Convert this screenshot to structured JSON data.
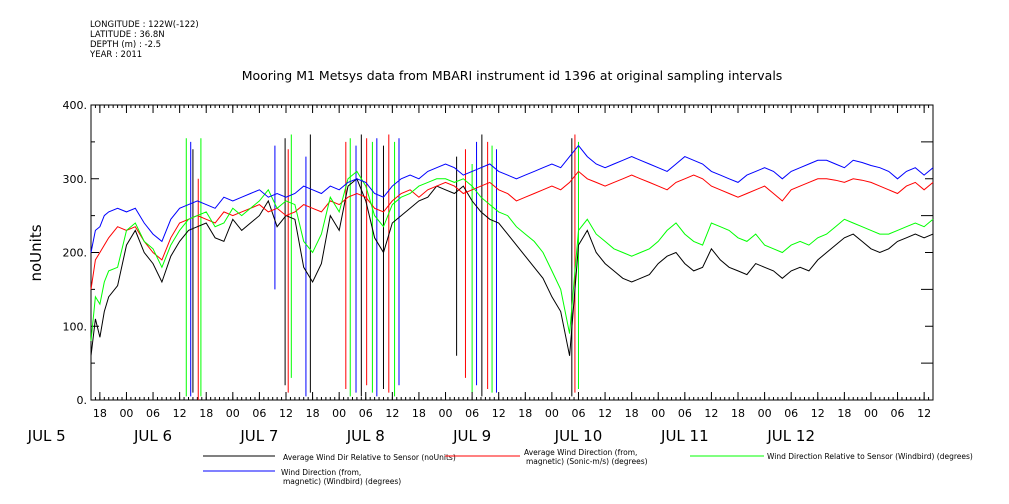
{
  "meta": {
    "longitude": "LONGITUDE : 122W(-122)",
    "latitude": "LATITUDE : 36.8N",
    "depth": "DEPTH (m) : -2.5",
    "year": "YEAR : 2011"
  },
  "chart_data": {
    "type": "line",
    "title": "Mooring M1 Metsys data from MBARI instrument id 1396 at original sampling intervals",
    "ylabel": "noUnits",
    "xlabel": "",
    "ylim": [
      0,
      400
    ],
    "xlim": [
      16,
      206
    ],
    "yticks": [
      0,
      100,
      200,
      300,
      400
    ],
    "ytick_labels": [
      "0.",
      "100.",
      "200.",
      "300.",
      "400."
    ],
    "x_unit": "hours since JUL 5 00:00",
    "x_hour_ticks": [
      "18",
      "00",
      "06",
      "12",
      "18",
      "00",
      "06",
      "12",
      "18",
      "00",
      "06",
      "12",
      "18",
      "00",
      "06",
      "12",
      "18",
      "00",
      "06",
      "12",
      "18",
      "00",
      "06",
      "12",
      "18",
      "00",
      "06",
      "12",
      "18",
      "00",
      "06",
      "12"
    ],
    "x_date_labels": [
      {
        "text": "JUL  5",
        "x": 0
      },
      {
        "text": "JUL  6",
        "x": 24
      },
      {
        "text": "JUL  7",
        "x": 48
      },
      {
        "text": "JUL  8",
        "x": 72
      },
      {
        "text": "JUL  9",
        "x": 96
      },
      {
        "text": "JUL 10",
        "x": 120
      },
      {
        "text": "JUL 11",
        "x": 144
      },
      {
        "text": "JUL 12",
        "x": 168
      }
    ],
    "grid": false,
    "legend_position": "bottom",
    "series": [
      {
        "name": "Average Wind Dir Relative to Sensor (noUnits)",
        "color": "#000000",
        "x": [
          16,
          17,
          18,
          19,
          20,
          22,
          24,
          26,
          28,
          30,
          32,
          34,
          36,
          38,
          40,
          42,
          44,
          46,
          48,
          50,
          52,
          54,
          56,
          58,
          60,
          62,
          64,
          66,
          68,
          70,
          72,
          74,
          76,
          78,
          80,
          82,
          84,
          86,
          88,
          90,
          92,
          94,
          96,
          98,
          100,
          102,
          104,
          106,
          108,
          110,
          112,
          114,
          116,
          118,
          120,
          122,
          124,
          126,
          128,
          130,
          132,
          134,
          136,
          138,
          140,
          142,
          144,
          146,
          148,
          150,
          152,
          154,
          156,
          158,
          160,
          162,
          164,
          166,
          168,
          170,
          172,
          174,
          176,
          178,
          180,
          182,
          184,
          186,
          188,
          190,
          192,
          194,
          196,
          198,
          200,
          202,
          204,
          206
        ],
        "values": [
          60,
          110,
          85,
          120,
          140,
          155,
          210,
          230,
          200,
          185,
          160,
          195,
          215,
          230,
          235,
          240,
          220,
          215,
          245,
          230,
          240,
          250,
          270,
          235,
          250,
          245,
          180,
          160,
          185,
          250,
          230,
          290,
          300,
          270,
          220,
          200,
          240,
          250,
          260,
          270,
          275,
          290,
          285,
          280,
          290,
          270,
          255,
          245,
          240,
          225,
          210,
          195,
          180,
          165,
          140,
          120,
          60,
          210,
          230,
          200,
          185,
          175,
          165,
          160,
          165,
          170,
          185,
          195,
          200,
          185,
          175,
          180,
          205,
          190,
          180,
          175,
          170,
          185,
          180,
          175,
          165,
          175,
          180,
          175,
          190,
          200,
          210,
          220,
          225,
          215,
          205,
          200,
          205,
          215,
          220,
          225,
          220,
          225
        ]
      },
      {
        "name": "Average Wind Direction (from, magnetic) (Sonic-m/s) (degrees)",
        "color": "#ff0000",
        "x": [
          16,
          17,
          18,
          19,
          20,
          22,
          24,
          26,
          28,
          30,
          32,
          34,
          36,
          38,
          40,
          42,
          44,
          46,
          48,
          50,
          52,
          54,
          56,
          58,
          60,
          62,
          64,
          66,
          68,
          70,
          72,
          74,
          76,
          78,
          80,
          82,
          84,
          86,
          88,
          90,
          92,
          94,
          96,
          98,
          100,
          102,
          104,
          106,
          108,
          110,
          112,
          114,
          116,
          118,
          120,
          122,
          124,
          126,
          128,
          130,
          132,
          134,
          136,
          138,
          140,
          142,
          144,
          146,
          148,
          150,
          152,
          154,
          156,
          158,
          160,
          162,
          164,
          166,
          168,
          170,
          172,
          174,
          176,
          178,
          180,
          182,
          184,
          186,
          188,
          190,
          192,
          194,
          196,
          198,
          200,
          202,
          204,
          206
        ],
        "values": [
          150,
          190,
          200,
          210,
          220,
          235,
          230,
          235,
          215,
          200,
          190,
          220,
          240,
          245,
          250,
          245,
          240,
          255,
          250,
          255,
          260,
          265,
          255,
          260,
          250,
          255,
          265,
          260,
          255,
          270,
          265,
          275,
          280,
          275,
          260,
          255,
          270,
          280,
          285,
          275,
          285,
          290,
          295,
          290,
          280,
          285,
          290,
          295,
          285,
          280,
          270,
          275,
          280,
          285,
          290,
          285,
          295,
          310,
          300,
          295,
          290,
          295,
          300,
          305,
          300,
          295,
          290,
          285,
          295,
          300,
          305,
          300,
          290,
          285,
          280,
          275,
          280,
          285,
          290,
          280,
          270,
          285,
          290,
          295,
          300,
          300,
          298,
          295,
          300,
          298,
          295,
          290,
          285,
          280,
          290,
          295,
          285,
          295
        ]
      },
      {
        "name": "Wind Direction Relative to Sensor (Windbird) (degrees)",
        "color": "#00ff00",
        "x": [
          16,
          17,
          18,
          19,
          20,
          22,
          24,
          26,
          28,
          30,
          32,
          34,
          36,
          38,
          40,
          42,
          44,
          46,
          48,
          50,
          52,
          54,
          56,
          58,
          60,
          62,
          64,
          66,
          68,
          70,
          72,
          74,
          76,
          78,
          80,
          82,
          84,
          86,
          88,
          90,
          92,
          94,
          96,
          98,
          100,
          102,
          104,
          106,
          108,
          110,
          112,
          114,
          116,
          118,
          120,
          122,
          124,
          126,
          128,
          130,
          132,
          134,
          136,
          138,
          140,
          142,
          144,
          146,
          148,
          150,
          152,
          154,
          156,
          158,
          160,
          162,
          164,
          166,
          168,
          170,
          172,
          174,
          176,
          178,
          180,
          182,
          184,
          186,
          188,
          190,
          192,
          194,
          196,
          198,
          200,
          202,
          204,
          206
        ],
        "values": [
          80,
          140,
          130,
          160,
          175,
          180,
          230,
          240,
          215,
          205,
          180,
          210,
          230,
          245,
          250,
          255,
          235,
          240,
          260,
          250,
          260,
          270,
          285,
          260,
          270,
          265,
          215,
          200,
          225,
          275,
          255,
          300,
          310,
          290,
          250,
          235,
          265,
          275,
          280,
          290,
          295,
          300,
          300,
          295,
          300,
          290,
          275,
          265,
          255,
          250,
          235,
          225,
          215,
          200,
          175,
          150,
          90,
          230,
          245,
          225,
          215,
          205,
          200,
          195,
          200,
          205,
          215,
          230,
          240,
          225,
          215,
          210,
          240,
          235,
          230,
          220,
          215,
          225,
          210,
          205,
          200,
          210,
          215,
          210,
          220,
          225,
          235,
          245,
          240,
          235,
          230,
          225,
          225,
          230,
          235,
          240,
          235,
          245
        ]
      },
      {
        "name": "Wind Direction (from, magnetic) (Windbird) (degrees)",
        "color": "#0000ff",
        "x": [
          16,
          17,
          18,
          19,
          20,
          22,
          24,
          26,
          28,
          30,
          32,
          34,
          36,
          38,
          40,
          42,
          44,
          46,
          48,
          50,
          52,
          54,
          56,
          58,
          60,
          62,
          64,
          66,
          68,
          70,
          72,
          74,
          76,
          78,
          80,
          82,
          84,
          86,
          88,
          90,
          92,
          94,
          96,
          98,
          100,
          102,
          104,
          106,
          108,
          110,
          112,
          114,
          116,
          118,
          120,
          122,
          124,
          126,
          128,
          130,
          132,
          134,
          136,
          138,
          140,
          142,
          144,
          146,
          148,
          150,
          152,
          154,
          156,
          158,
          160,
          162,
          164,
          166,
          168,
          170,
          172,
          174,
          176,
          178,
          180,
          182,
          184,
          186,
          188,
          190,
          192,
          194,
          196,
          198,
          200,
          202,
          204,
          206
        ],
        "values": [
          200,
          230,
          235,
          250,
          255,
          260,
          255,
          260,
          240,
          225,
          215,
          245,
          260,
          265,
          270,
          265,
          260,
          275,
          270,
          275,
          280,
          285,
          275,
          280,
          275,
          280,
          290,
          285,
          280,
          290,
          285,
          295,
          300,
          295,
          280,
          275,
          290,
          300,
          305,
          300,
          310,
          315,
          320,
          315,
          305,
          310,
          315,
          320,
          310,
          305,
          300,
          305,
          310,
          315,
          320,
          315,
          330,
          345,
          330,
          320,
          315,
          320,
          325,
          330,
          325,
          320,
          315,
          310,
          320,
          330,
          325,
          320,
          310,
          305,
          300,
          295,
          305,
          310,
          315,
          310,
          300,
          310,
          315,
          320,
          325,
          325,
          320,
          315,
          325,
          322,
          318,
          315,
          310,
          300,
          310,
          315,
          305,
          315
        ]
      }
    ],
    "dropout_hours": [
      {
        "x": 37.5,
        "min": 5,
        "max": 355
      },
      {
        "x": 38.5,
        "min": 5,
        "max": 350
      },
      {
        "x": 39.0,
        "min": 10,
        "max": 340
      },
      {
        "x": 40.2,
        "min": 0,
        "max": 300
      },
      {
        "x": 40.8,
        "min": 5,
        "max": 355
      },
      {
        "x": 57.5,
        "min": 150,
        "max": 345
      },
      {
        "x": 59.8,
        "min": 20,
        "max": 355
      },
      {
        "x": 60.5,
        "min": 10,
        "max": 340
      },
      {
        "x": 61.2,
        "min": 30,
        "max": 360
      },
      {
        "x": 64.5,
        "min": 5,
        "max": 330
      },
      {
        "x": 65.5,
        "min": 10,
        "max": 360
      },
      {
        "x": 73.5,
        "min": 15,
        "max": 350
      },
      {
        "x": 74.5,
        "min": 5,
        "max": 355
      },
      {
        "x": 75.8,
        "min": 10,
        "max": 345
      },
      {
        "x": 77.0,
        "min": 5,
        "max": 360
      },
      {
        "x": 78.2,
        "min": 20,
        "max": 355
      },
      {
        "x": 79.5,
        "min": 10,
        "max": 350
      },
      {
        "x": 80.5,
        "min": 5,
        "max": 355
      },
      {
        "x": 82.0,
        "min": 15,
        "max": 345
      },
      {
        "x": 83.2,
        "min": 10,
        "max": 360
      },
      {
        "x": 84.5,
        "min": 5,
        "max": 350
      },
      {
        "x": 85.5,
        "min": 20,
        "max": 355
      },
      {
        "x": 98.5,
        "min": 60,
        "max": 330
      },
      {
        "x": 100.5,
        "min": 30,
        "max": 340
      },
      {
        "x": 102.0,
        "min": 10,
        "max": 320
      },
      {
        "x": 103.0,
        "min": 20,
        "max": 350
      },
      {
        "x": 104.2,
        "min": 5,
        "max": 360
      },
      {
        "x": 105.5,
        "min": 15,
        "max": 350
      },
      {
        "x": 106.5,
        "min": 10,
        "max": 345
      },
      {
        "x": 107.5,
        "min": 10,
        "max": 340
      },
      {
        "x": 124.5,
        "min": 5,
        "max": 355
      },
      {
        "x": 125.2,
        "min": 10,
        "max": 360
      },
      {
        "x": 126.0,
        "min": 15,
        "max": 350
      }
    ]
  },
  "legend": [
    {
      "text_1": "Average Wind Dir Relative to Sensor (noUnits)",
      "text_2": "",
      "color": "#000000"
    },
    {
      "text_1": "Average Wind Direction (from,",
      "text_2": "magnetic) (Sonic-m/s) (degrees)",
      "color": "#ff0000"
    },
    {
      "text_1": "Wind Direction Relative to Sensor (Windbird) (degrees)",
      "text_2": "",
      "color": "#00ff00"
    },
    {
      "text_1": "Wind Direction (from,",
      "text_2": "magnetic) (Windbird) (degrees)",
      "color": "#0000ff"
    }
  ]
}
